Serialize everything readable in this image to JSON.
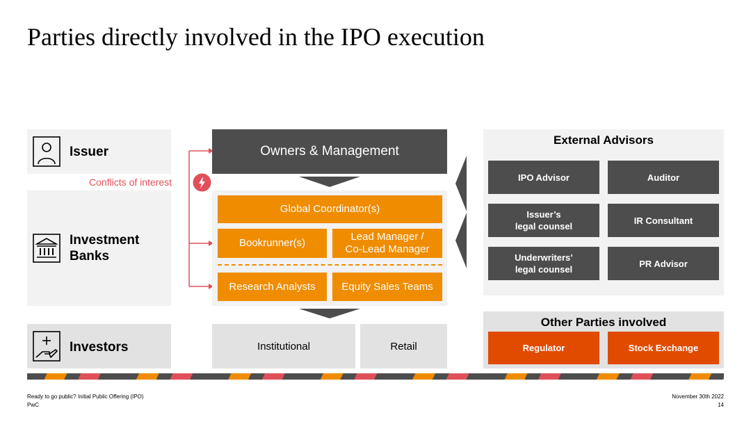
{
  "title": "Parties directly involved in the IPO execution",
  "left": {
    "issuer": "Issuer",
    "banks_line1": "Investment",
    "banks_line2": "Banks",
    "investors": "Investors"
  },
  "conflicts": "Conflicts of interest",
  "center": {
    "owners": "Owners & Management",
    "global_coordinator": "Global Coordinator(s)",
    "bookrunner": "Bookrunner(s)",
    "lead_manager_line1": "Lead Manager /",
    "lead_manager_line2": "Co-Lead Manager",
    "research": "Research Analysts",
    "equity_sales": "Equity Sales Teams",
    "institutional": "Institutional",
    "retail": "Retail"
  },
  "external": {
    "title": "External Advisors",
    "ipo_advisor": "IPO Advisor",
    "auditor": "Auditor",
    "issuer_counsel_line1": "Issuer’s",
    "issuer_counsel_line2": "legal counsel",
    "ir_consultant": "IR Consultant",
    "underwriters_counsel_line1": "Underwriters’",
    "underwriters_counsel_line2": "legal counsel",
    "pr_advisor": "PR Advisor"
  },
  "other": {
    "title": "Other Parties involved",
    "regulator": "Regulator",
    "stock_exchange": "Stock Exchange"
  },
  "footer": {
    "document": "Ready to go public? Initial Public Offering (IPO)",
    "company": "PwC",
    "date": "November 30th 2022",
    "page": "14"
  },
  "colors": {
    "orange": "#f08c00",
    "dark_grey": "#4d4d4d",
    "red_orange": "#e04b00",
    "conflict_red": "#e0505a"
  },
  "icons": [
    "person-icon",
    "bank-icon",
    "investor-hand-icon",
    "lightning-icon"
  ]
}
